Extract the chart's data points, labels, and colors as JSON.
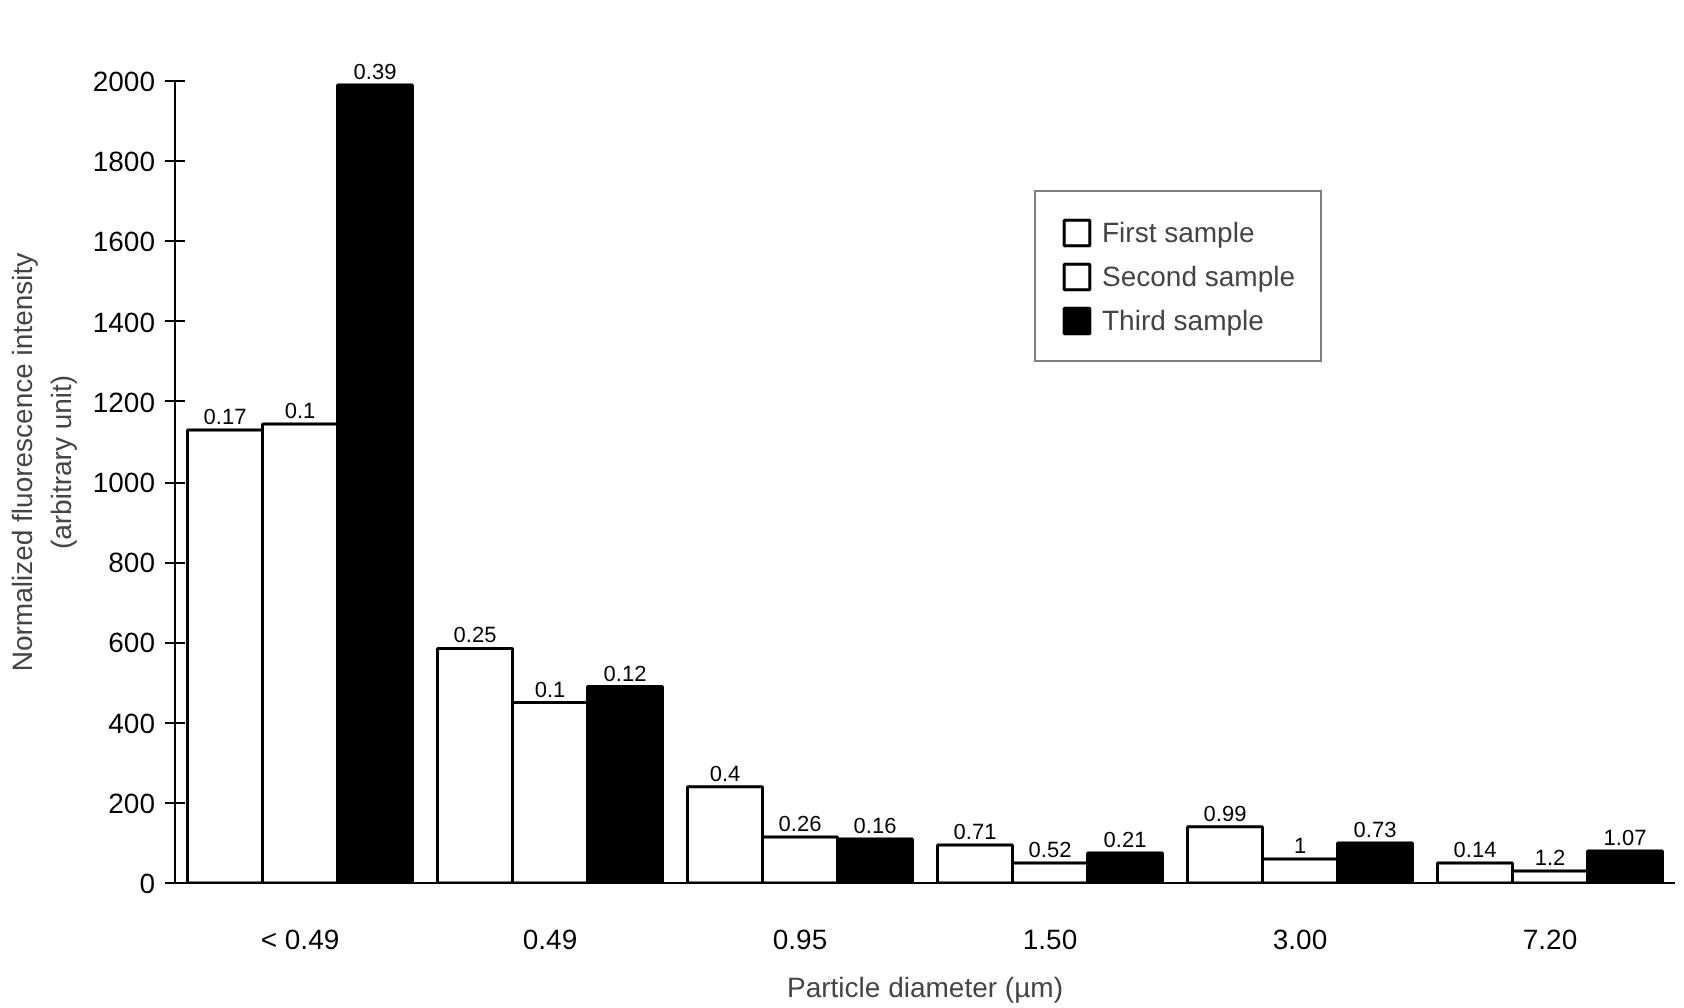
{
  "chart_data": {
    "type": "bar",
    "xlabel": "Particle diameter (µm)",
    "ylabel": "Normalized fluorescence intensity\n(arbitrary unit)",
    "categories": [
      "< 0.49",
      "0.49",
      "0.95",
      "1.50",
      "3.00",
      "7.20"
    ],
    "series": [
      {
        "name": "First sample",
        "color": "#ffffff",
        "values": [
          1130,
          585,
          240,
          95,
          140,
          50
        ]
      },
      {
        "name": "Second sample",
        "color": "#ffffff",
        "values": [
          1145,
          450,
          115,
          50,
          60,
          30
        ]
      },
      {
        "name": "Third sample",
        "color": "#000000",
        "values": [
          1990,
          490,
          110,
          75,
          100,
          80
        ]
      }
    ],
    "annotations": [
      "0.17",
      "0.1",
      "0.39",
      "0.25",
      "0.1",
      "0.12",
      "0.4",
      "0.26",
      "0.16",
      "0.71",
      "0.52",
      "0.21",
      "0.99",
      "1",
      "0.73",
      "0.14",
      "1.2",
      "1.07"
    ],
    "ylim": [
      0,
      2000
    ],
    "yticks": [
      0,
      200,
      400,
      600,
      800,
      1000,
      1200,
      1400,
      1600,
      1800,
      2000
    ],
    "grid": false,
    "legend": "top right"
  }
}
